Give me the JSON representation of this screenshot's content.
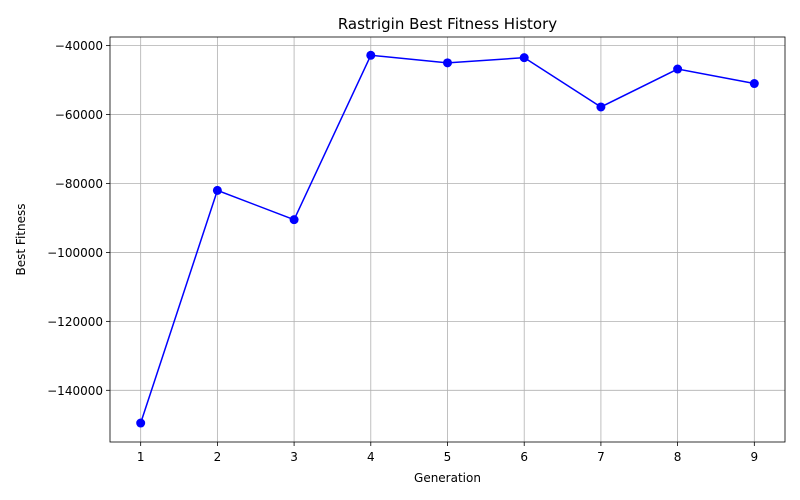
{
  "chart_data": {
    "type": "line",
    "title": "Rastrigin Best Fitness History",
    "xlabel": "Generation",
    "ylabel": "Best Fitness",
    "x": [
      1,
      2,
      3,
      4,
      5,
      6,
      7,
      8,
      9
    ],
    "series": [
      {
        "values": [
          -149500,
          -82000,
          -90500,
          -42800,
          -45000,
          -43500,
          -57800,
          -46800,
          -51000
        ],
        "color": "#0000ff",
        "marker": "circle"
      }
    ],
    "xlim": [
      0.6,
      9.4
    ],
    "ylim": [
      -155000,
      -37500
    ],
    "xticks": [
      1,
      2,
      3,
      4,
      5,
      6,
      7,
      8,
      9
    ],
    "yticks": [
      -140000,
      -120000,
      -100000,
      -80000,
      -60000,
      -40000
    ],
    "xtick_labels": [
      "1",
      "2",
      "3",
      "4",
      "5",
      "6",
      "7",
      "8",
      "9"
    ],
    "ytick_labels": [
      "−140000",
      "−120000",
      "−100000",
      "−80000",
      "−60000",
      "−40000"
    ],
    "grid": true,
    "legend": "none"
  }
}
